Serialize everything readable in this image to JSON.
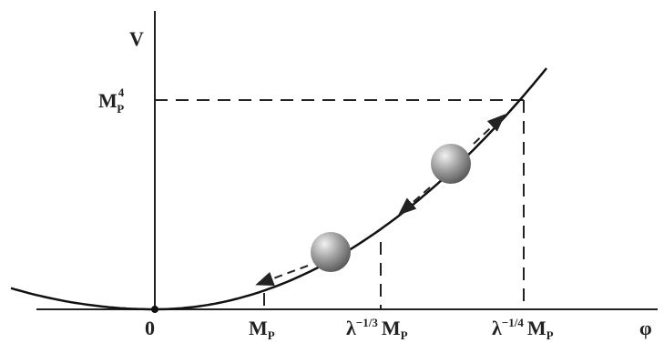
{
  "axes": {
    "y_label": "V",
    "x_label": "φ",
    "origin": "0"
  },
  "x_marks": [
    {
      "base": "M",
      "sub": "P"
    },
    {
      "prefix": "λ",
      "prefix_sup": "−1/3",
      "base": "M",
      "sub": "P"
    },
    {
      "prefix": "λ",
      "prefix_sup": "−1/4",
      "base": "M",
      "sub": "P"
    }
  ],
  "y_mark": {
    "base": "M",
    "sub": "P",
    "sup": "4"
  }
}
